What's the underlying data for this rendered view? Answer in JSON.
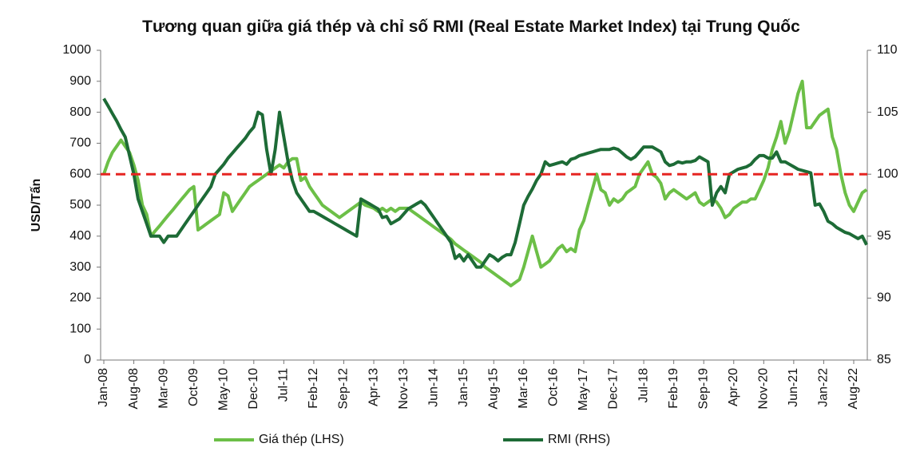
{
  "chart_data": {
    "type": "line",
    "title": "Tương quan giữa giá thép và chỉ số RMI (Real Estate Market Index) tại Trung Quốc",
    "ylabel": "USD/Tấn",
    "categories": [
      "Jan-08",
      null,
      null,
      null,
      null,
      null,
      null,
      "Aug-08",
      null,
      null,
      null,
      null,
      null,
      null,
      "Mar-09",
      null,
      null,
      null,
      null,
      null,
      null,
      "Oct-09",
      null,
      null,
      null,
      null,
      null,
      null,
      "May-10",
      null,
      null,
      null,
      null,
      null,
      null,
      "Dec-10",
      null,
      null,
      null,
      null,
      null,
      null,
      "Jul-11",
      null,
      null,
      null,
      null,
      null,
      null,
      "Feb-12",
      null,
      null,
      null,
      null,
      null,
      null,
      "Sep-12",
      null,
      null,
      null,
      null,
      null,
      null,
      "Apr-13",
      null,
      null,
      null,
      null,
      null,
      null,
      "Nov-13",
      null,
      null,
      null,
      null,
      null,
      null,
      "Jun-14",
      null,
      null,
      null,
      null,
      null,
      null,
      "Jan-15",
      null,
      null,
      null,
      null,
      null,
      null,
      "Aug-15",
      null,
      null,
      null,
      null,
      null,
      null,
      "Mar-16",
      null,
      null,
      null,
      null,
      null,
      null,
      "Oct-16",
      null,
      null,
      null,
      null,
      null,
      null,
      "May-17",
      null,
      null,
      null,
      null,
      null,
      null,
      "Dec-17",
      null,
      null,
      null,
      null,
      null,
      null,
      "Jul-18",
      null,
      null,
      null,
      null,
      null,
      null,
      "Feb-19",
      null,
      null,
      null,
      null,
      null,
      null,
      "Sep-19",
      null,
      null,
      null,
      null,
      null,
      null,
      "Apr-20",
      null,
      null,
      null,
      null,
      null,
      null,
      "Nov-20",
      null,
      null,
      null,
      null,
      null,
      null,
      "Jun-21",
      null,
      null,
      null,
      null,
      null,
      null,
      "Jan-22",
      null,
      null,
      null,
      null,
      null,
      null,
      "Aug-22",
      null,
      null,
      null
    ],
    "series": [
      {
        "name": "Giá thép (LHS)",
        "color": "#6cbf47",
        "values": [
          600,
          640,
          670,
          690,
          710,
          690,
          670,
          630,
          580,
          500,
          470,
          400,
          417,
          433,
          450,
          467,
          483,
          500,
          517,
          533,
          550,
          560,
          420,
          430,
          440,
          450,
          460,
          470,
          540,
          530,
          480,
          500,
          520,
          540,
          560,
          570,
          580,
          590,
          600,
          610,
          620,
          630,
          620,
          640,
          650,
          650,
          580,
          590,
          560,
          540,
          520,
          500,
          490,
          480,
          470,
          460,
          470,
          480,
          490,
          500,
          510,
          500,
          495,
          490,
          480,
          490,
          480,
          490,
          480,
          490,
          490,
          490,
          480,
          470,
          460,
          450,
          440,
          430,
          420,
          410,
          400,
          390,
          375,
          365,
          355,
          345,
          335,
          325,
          315,
          300,
          290,
          280,
          270,
          260,
          250,
          240,
          250,
          260,
          300,
          350,
          400,
          350,
          300,
          310,
          320,
          340,
          360,
          370,
          350,
          360,
          350,
          420,
          450,
          500,
          550,
          600,
          550,
          540,
          500,
          520,
          510,
          520,
          540,
          550,
          560,
          600,
          620,
          640,
          600,
          590,
          570,
          520,
          540,
          550,
          540,
          530,
          520,
          530,
          540,
          510,
          500,
          510,
          520,
          510,
          490,
          460,
          470,
          490,
          500,
          510,
          510,
          520,
          520,
          550,
          580,
          620,
          680,
          720,
          770,
          700,
          740,
          800,
          860,
          900,
          750,
          750,
          770,
          790,
          800,
          810,
          720,
          680,
          600,
          540,
          500,
          480,
          510,
          540,
          550
        ]
      },
      {
        "name": "RMI (RHS)",
        "color": "#1d6b36",
        "axis": "y2",
        "values": [
          106.1,
          105.5,
          104.9,
          104.3,
          103.6,
          103,
          101.5,
          100,
          98,
          97,
          96,
          95,
          95,
          95,
          94.5,
          95,
          95,
          95,
          95.5,
          96,
          96.5,
          97,
          97.5,
          98,
          98.5,
          99,
          100,
          100.4,
          100.8,
          101.3,
          101.7,
          102.1,
          102.5,
          102.9,
          103.4,
          103.8,
          105,
          104.8,
          102,
          100,
          102,
          105,
          103,
          101,
          99.5,
          98.5,
          98,
          97.5,
          97,
          97,
          96.8,
          96.6,
          96.4,
          96.2,
          96,
          95.8,
          95.6,
          95.4,
          95.2,
          95,
          98,
          97.8,
          97.6,
          97.4,
          97.2,
          96.5,
          96.6,
          96,
          96.2,
          96.4,
          96.8,
          97.2,
          97.4,
          97.6,
          97.8,
          97.5,
          97,
          96.5,
          96,
          95.5,
          95,
          94.5,
          93.2,
          93.5,
          93,
          93.5,
          93,
          92.5,
          92.5,
          93,
          93.5,
          93.3,
          93,
          93.3,
          93.5,
          93.5,
          94.5,
          96,
          97.5,
          98.2,
          98.8,
          99.5,
          100,
          101,
          100.7,
          100.8,
          100.9,
          101,
          100.8,
          101.2,
          101.3,
          101.5,
          101.6,
          101.7,
          101.8,
          101.9,
          102,
          102,
          102,
          102.1,
          102,
          101.7,
          101.4,
          101.2,
          101.4,
          101.8,
          102.2,
          102.2,
          102.2,
          102,
          101.8,
          101,
          100.7,
          100.8,
          101,
          100.9,
          101,
          101,
          101.1,
          101.4,
          101.2,
          101,
          97.5,
          98.5,
          99,
          98.5,
          100,
          100.2,
          100.4,
          100.5,
          100.6,
          100.8,
          101.2,
          101.5,
          101.5,
          101.3,
          101.3,
          101.8,
          101,
          101,
          100.8,
          100.6,
          100.4,
          100.3,
          100.2,
          100.1,
          97.5,
          97.6,
          97,
          96.2,
          96,
          95.7,
          95.5,
          95.3,
          95.2,
          95,
          94.8,
          95,
          94.3
        ]
      }
    ],
    "ylim": [
      0,
      1000
    ],
    "yticks": [
      0,
      100,
      200,
      300,
      400,
      500,
      600,
      700,
      800,
      900,
      1000
    ],
    "y2lim": [
      85,
      110
    ],
    "y2ticks": [
      85,
      90,
      95,
      100,
      105,
      110
    ],
    "hline": {
      "value": 600,
      "color": "#e52421"
    }
  }
}
